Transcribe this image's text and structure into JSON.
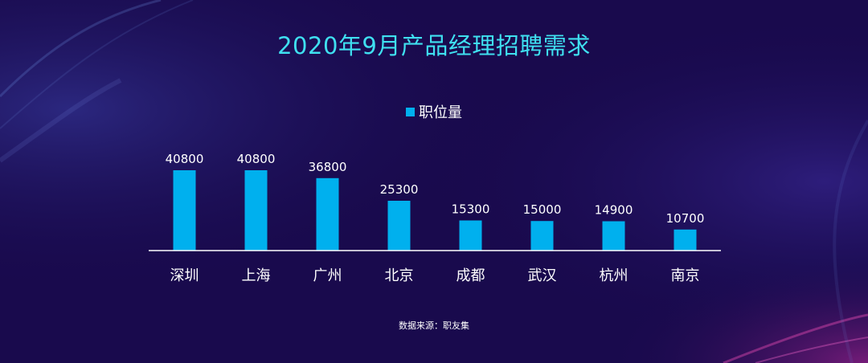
{
  "colors": {
    "background": "#1a0b52",
    "bar": "#00b0ee",
    "title": "#3fe0f0",
    "text": "#ffffff",
    "axis": "#ffffff"
  },
  "chart_data": {
    "type": "bar",
    "title": "2020年9月产品经理招聘需求",
    "legend_position": "top-center",
    "grid": false,
    "categories": [
      "深圳",
      "上海",
      "广州",
      "北京",
      "成都",
      "武汉",
      "杭州",
      "南京"
    ],
    "series": [
      {
        "name": "职位量",
        "values": [
          40800,
          40800,
          36800,
          25300,
          15300,
          15000,
          14900,
          10700
        ]
      }
    ],
    "ylim": [
      0,
      40800
    ],
    "xlabel": "",
    "ylabel": ""
  },
  "footer": {
    "source": "数据来源：职友集"
  }
}
